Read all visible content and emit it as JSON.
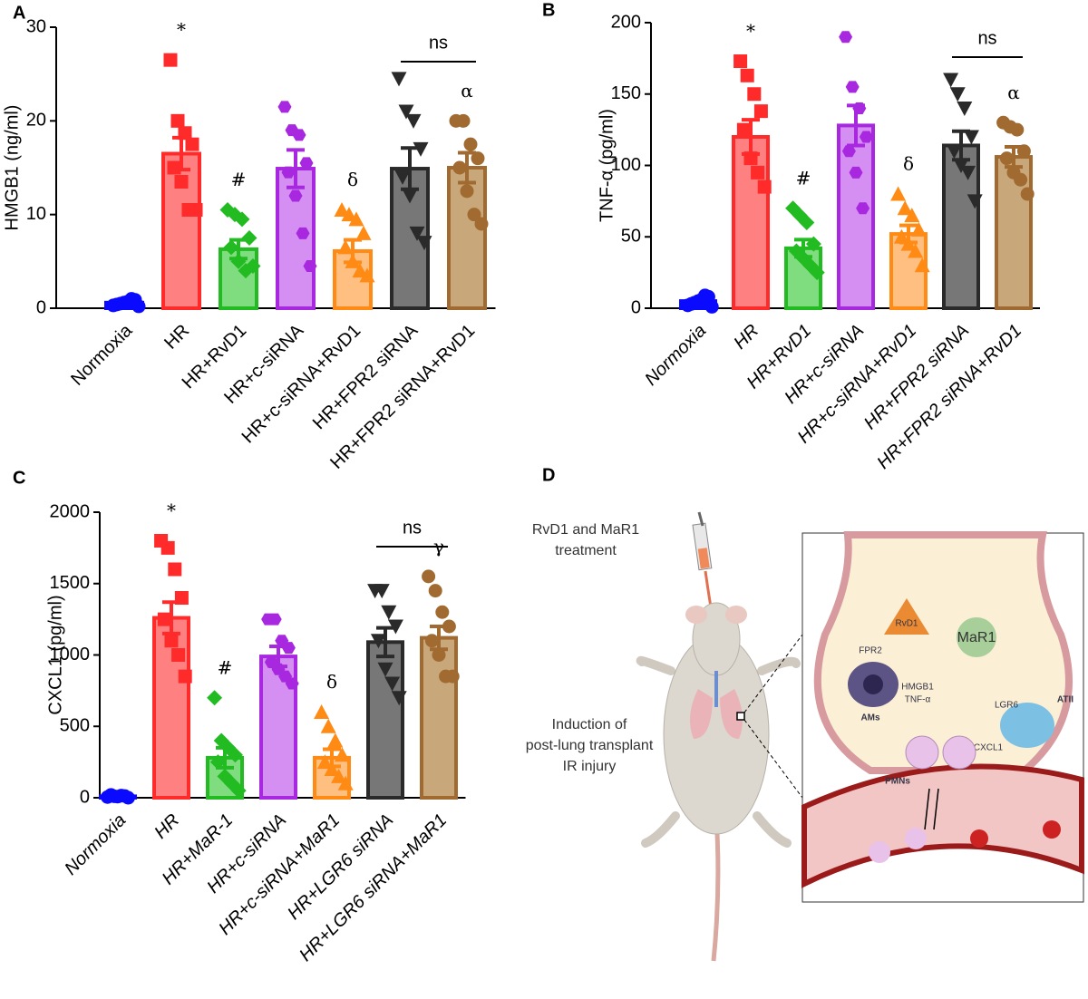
{
  "chart_data": [
    {
      "type": "bar",
      "panel": "A",
      "ylabel": "HMGB1 (ng/ml)",
      "categories": [
        "Normoxia",
        "HR",
        "HR+RvD1",
        "HR+c-siRNA",
        "HR+c-siRNA+RvD1",
        "HR+FPR2 siRNA",
        "HR+FPR2 siRNA+RvD1"
      ],
      "values": [
        0.6,
        16.5,
        6.3,
        14.9,
        6.1,
        14.9,
        15.0
      ],
      "errors": [
        0.1,
        1.7,
        1.0,
        2.0,
        1.2,
        2.2,
        1.6
      ],
      "points": [
        [
          0.3,
          0.5,
          0.7,
          0.9,
          0.4,
          0.6,
          1.0,
          0.2
        ],
        [
          26.5,
          20,
          18.7,
          17.5,
          15,
          13.5,
          10.5,
          10.5
        ],
        [
          10.5,
          10,
          9.5,
          7.5,
          6.5,
          5,
          4,
          4.5
        ],
        [
          21.5,
          19,
          18.5,
          15.5,
          14.5,
          12,
          8,
          4.5
        ],
        [
          10.5,
          10,
          9.5,
          8,
          6.5,
          5,
          4,
          3.5
        ],
        [
          24.5,
          21,
          20,
          17,
          14,
          12,
          8,
          7
        ],
        [
          20,
          20,
          17.5,
          16,
          15,
          12.5,
          10,
          9
        ]
      ],
      "colors": [
        "#0a0aff",
        "#ff2a2a",
        "#22bb22",
        "#a828e0",
        "#ff8a14",
        "#2a2a2a",
        "#a06a30"
      ],
      "fills": [
        "#0a0aff",
        "#ff8080",
        "#7fdc7f",
        "#d58ef2",
        "#ffbf80",
        "#777777",
        "#c8a77a"
      ],
      "markers": [
        "circle",
        "square",
        "diamond",
        "hexagon",
        "triangle-up",
        "triangle-down",
        "circle"
      ],
      "x_label_style": "normal",
      "ylim": [
        0,
        30
      ],
      "yticks": [
        0,
        10,
        20,
        30
      ],
      "annotations": [
        {
          "text": "*",
          "category": "HR"
        },
        {
          "text": "#",
          "category": "HR+RvD1"
        },
        {
          "text": "δ",
          "category": "HR+c-siRNA+RvD1"
        },
        {
          "text": "α",
          "category": "HR+FPR2 siRNA+RvD1"
        }
      ],
      "bracket": {
        "text": "ns",
        "from": "HR+FPR2 siRNA",
        "to": "HR+FPR2 siRNA+RvD1"
      }
    },
    {
      "type": "bar",
      "panel": "B",
      "ylabel": "TNF-α (pg/ml)",
      "categories": [
        "Normoxia",
        "HR",
        "HR+RvD1",
        "HR+c-siRNA",
        "HR+c-siRNA+RvD1",
        "HR+FPR2 siRNA",
        "HR+FPR2 siRNA+RvD1"
      ],
      "values": [
        5,
        120,
        42,
        128,
        52,
        114,
        106
      ],
      "errors": [
        1,
        12,
        6,
        14,
        6,
        10,
        7
      ],
      "points": [
        [
          2,
          4,
          6,
          8,
          3,
          5,
          9,
          1
        ],
        [
          173,
          163,
          150,
          138,
          125,
          105,
          95,
          85
        ],
        [
          70,
          65,
          60,
          45,
          40,
          35,
          30,
          25
        ],
        [
          190,
          155,
          140,
          120,
          110,
          95,
          70
        ],
        [
          80,
          70,
          65,
          55,
          50,
          45,
          40,
          30
        ],
        [
          160,
          150,
          140,
          120,
          110,
          100,
          95,
          75
        ],
        [
          130,
          127,
          125,
          110,
          105,
          95,
          90,
          80
        ]
      ],
      "colors": [
        "#0a0aff",
        "#ff2a2a",
        "#22bb22",
        "#a828e0",
        "#ff8a14",
        "#2a2a2a",
        "#a06a30"
      ],
      "fills": [
        "#0a0aff",
        "#ff8080",
        "#7fdc7f",
        "#d58ef2",
        "#ffbf80",
        "#777777",
        "#c8a77a"
      ],
      "markers": [
        "circle",
        "square",
        "diamond",
        "hexagon",
        "triangle-up",
        "triangle-down",
        "circle"
      ],
      "x_label_style": "italic",
      "ylim": [
        0,
        200
      ],
      "yticks": [
        0,
        50,
        100,
        150,
        200
      ],
      "annotations": [
        {
          "text": "*",
          "category": "HR"
        },
        {
          "text": "#",
          "category": "HR+RvD1"
        },
        {
          "text": "δ",
          "category": "HR+c-siRNA+RvD1"
        },
        {
          "text": "α",
          "category": "HR+FPR2 siRNA+RvD1"
        }
      ],
      "bracket": {
        "text": "ns",
        "from": "HR+FPR2 siRNA",
        "to": "HR+FPR2 siRNA+RvD1"
      }
    },
    {
      "type": "bar",
      "panel": "C",
      "ylabel": "CXCL1 (pg/ml)",
      "categories": [
        "Normoxia",
        "HR",
        "HR+MaR-1",
        "HR+c-siRNA",
        "HR+c-siRNA+MaR1",
        "HR+LGR6 siRNA",
        "HR+LGR6 siRNA+MaR1"
      ],
      "values": [
        10,
        1260,
        280,
        990,
        280,
        1090,
        1120
      ],
      "errors": [
        3,
        110,
        70,
        70,
        60,
        100,
        80
      ],
      "points": [
        [
          5,
          10,
          15,
          0,
          20,
          8,
          12
        ],
        [
          1800,
          1750,
          1600,
          1400,
          1250,
          1100,
          1000,
          850
        ],
        [
          700,
          400,
          350,
          300,
          250,
          150,
          100,
          50
        ],
        [
          1250,
          1250,
          1100,
          1050,
          950,
          900,
          850,
          800
        ],
        [
          600,
          500,
          400,
          300,
          250,
          200,
          150,
          100
        ],
        [
          1450,
          1450,
          1300,
          1200,
          1100,
          900,
          800,
          700
        ],
        [
          1550,
          1450,
          1300,
          1200,
          1100,
          1000,
          850,
          850
        ]
      ],
      "colors": [
        "#0a0aff",
        "#ff2a2a",
        "#22bb22",
        "#a828e0",
        "#ff8a14",
        "#2a2a2a",
        "#a06a30"
      ],
      "fills": [
        "#0a0aff",
        "#ff8080",
        "#7fdc7f",
        "#d58ef2",
        "#ffbf80",
        "#777777",
        "#c8a77a"
      ],
      "markers": [
        "circle",
        "square",
        "diamond",
        "hexagon",
        "triangle-up",
        "triangle-down",
        "circle"
      ],
      "x_label_style": "italic",
      "ylim": [
        0,
        2000
      ],
      "yticks": [
        0,
        500,
        1000,
        1500,
        2000
      ],
      "annotations": [
        {
          "text": "*",
          "category": "HR"
        },
        {
          "text": "#",
          "category": "HR+MaR-1"
        },
        {
          "text": "δ",
          "category": "HR+c-siRNA+MaR1"
        },
        {
          "text": "γ",
          "category": "HR+LGR6 siRNA+MaR1"
        }
      ],
      "bracket": {
        "text": "ns",
        "from": "HR+LGR6 siRNA",
        "to": "HR+LGR6 siRNA+MaR1"
      }
    }
  ],
  "diagram": {
    "panel": "D",
    "treatment": [
      "RvD1 and MaR1",
      "treatment"
    ],
    "induction": [
      "Induction of",
      "post-lung transplant",
      "IR injury"
    ],
    "labels": {
      "rvd1": "RvD1",
      "mar1": "MaR1",
      "fpr2": "FPR2",
      "hmgb1": "HMGB1",
      "tnf": "TNF-α",
      "ams": "AMs",
      "lgr6": "LGR6",
      "atii": "ATII",
      "cxcl1": "CXCL1",
      "pmns": "PMNs"
    }
  }
}
